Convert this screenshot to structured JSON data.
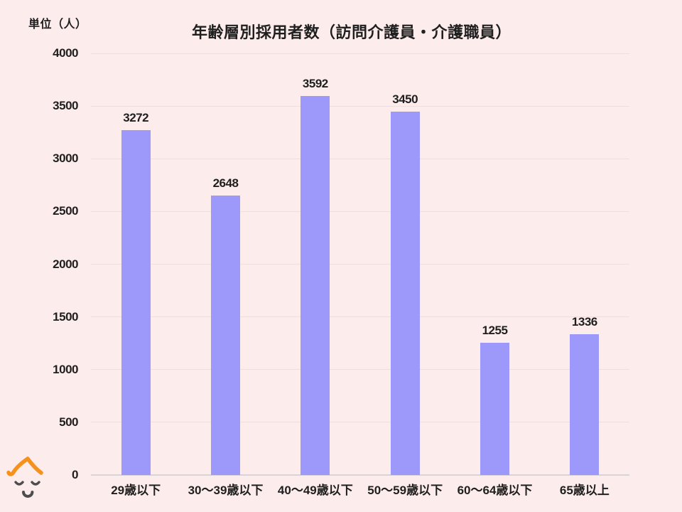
{
  "page": {
    "background_color": "#fdecec"
  },
  "header": {
    "unit_label": "単位（人）",
    "title": "年齢層別採用者数（訪問介護員・介護職員）"
  },
  "chart_data": {
    "type": "bar",
    "title": "年齢層別採用者数（訪問介護員・介護職員）",
    "categories": [
      "29歳以下",
      "30〜39歳以下",
      "40〜49歳以下",
      "50〜59歳以下",
      "60〜64歳以下",
      "65歳以上"
    ],
    "values": [
      3272,
      2648,
      3592,
      3450,
      1255,
      1336
    ],
    "value_labels": [
      "3272",
      "2648",
      "3592",
      "3450",
      "1255",
      "1336"
    ],
    "xlabel": "",
    "ylabel": "単位（人）",
    "ylim": [
      0,
      4000
    ],
    "yticks": [
      0,
      500,
      1000,
      1500,
      2000,
      2500,
      3000,
      3500,
      4000
    ],
    "ytick_labels": [
      "0",
      "500",
      "1000",
      "1500",
      "2000",
      "2500",
      "3000",
      "3500",
      "4000"
    ],
    "grid": "horizontal",
    "legend": "none",
    "bar_color": "#9d99fb",
    "gridline_color": "#e6e1e5",
    "axis_line_color": "#d8d3d8",
    "text_color": "#1f1f1f"
  },
  "logo": {
    "name": "mascot-face",
    "hair_color": "#f5921e",
    "face_color": "#4d4d4d"
  }
}
